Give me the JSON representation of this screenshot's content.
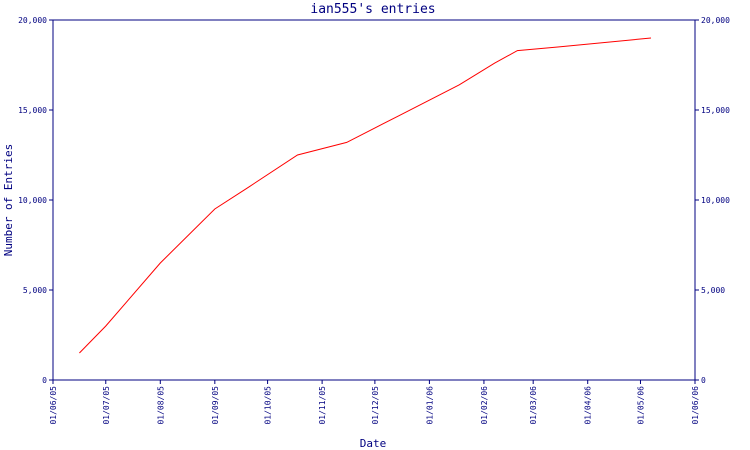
{
  "chart_data": {
    "type": "line",
    "title": "ian555's entries",
    "xlabel": "Date",
    "ylabel": "Number of Entries",
    "x_ticks": [
      "01/06/05",
      "01/07/05",
      "01/08/05",
      "01/09/05",
      "01/10/05",
      "01/11/05",
      "01/12/05",
      "01/01/06",
      "01/02/06",
      "01/03/06",
      "01/04/06",
      "01/05/06",
      "01/06/06"
    ],
    "y_ticks": [
      "0",
      "5,000",
      "10,000",
      "15,000",
      "20,000"
    ],
    "ylim": [
      0,
      20000
    ],
    "grid": false,
    "series": [
      {
        "color": "#ff0000",
        "points": [
          {
            "x": "2005-06-16",
            "y": 1500
          },
          {
            "x": "2005-07-01",
            "y": 3000
          },
          {
            "x": "2005-08-01",
            "y": 6500
          },
          {
            "x": "2005-09-01",
            "y": 9500
          },
          {
            "x": "2005-09-20",
            "y": 10700
          },
          {
            "x": "2005-10-18",
            "y": 12500
          },
          {
            "x": "2005-11-15",
            "y": 13200
          },
          {
            "x": "2005-12-15",
            "y": 14700
          },
          {
            "x": "2006-01-18",
            "y": 16400
          },
          {
            "x": "2006-02-07",
            "y": 17600
          },
          {
            "x": "2006-02-20",
            "y": 18300
          },
          {
            "x": "2006-03-15",
            "y": 18500
          },
          {
            "x": "2006-05-07",
            "y": 19000
          }
        ]
      }
    ],
    "axis_color": "#000080",
    "line_color": "#ff0000"
  }
}
